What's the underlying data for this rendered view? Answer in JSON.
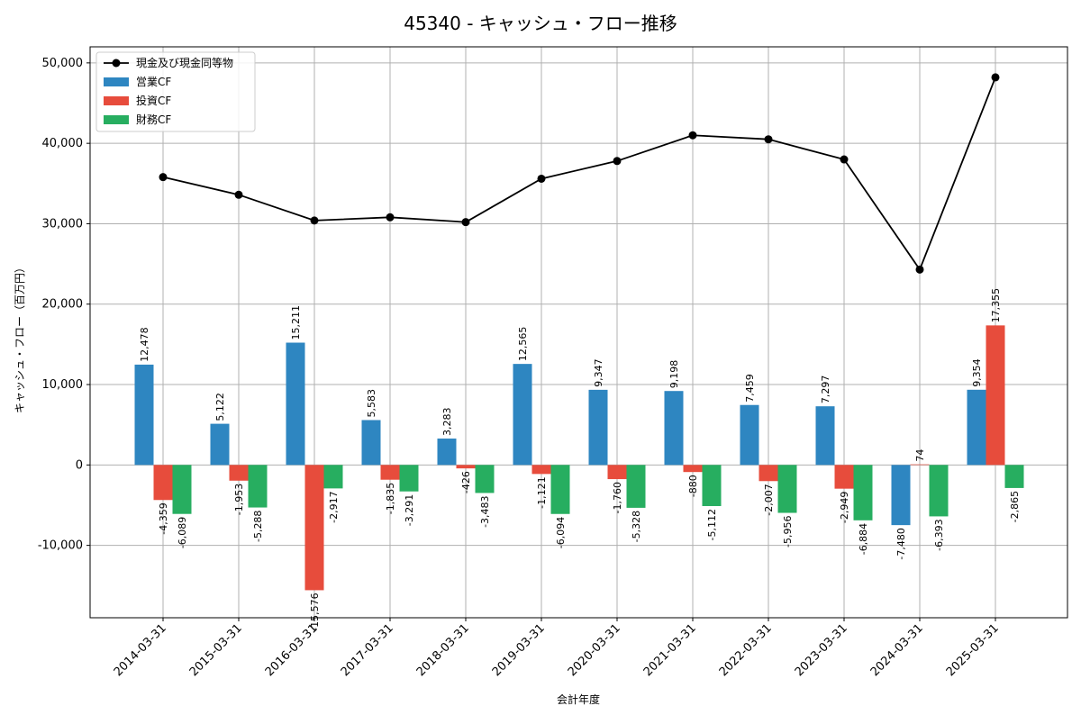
{
  "chart_data": {
    "type": "bar",
    "title": "45340 - キャッシュ・フロー推移",
    "xlabel": "会計年度",
    "ylabel": "キャッシュ・フロー（百万円）",
    "ylim": [
      -19000,
      52000
    ],
    "y_ticks": [
      -10000,
      0,
      10000,
      20000,
      30000,
      40000,
      50000
    ],
    "y_tick_labels": [
      "-10,000",
      "0",
      "10,000",
      "20,000",
      "30,000",
      "40,000",
      "50,000"
    ],
    "grid": true,
    "legend_position": "top-left",
    "categories": [
      "2014-03-31",
      "2015-03-31",
      "2016-03-31",
      "2017-03-31",
      "2018-03-31",
      "2019-03-31",
      "2020-03-31",
      "2021-03-31",
      "2022-03-31",
      "2023-03-31",
      "2024-03-31",
      "2025-03-31"
    ],
    "series": [
      {
        "name": "営業CF",
        "type": "bar",
        "color": "#2e86c1",
        "values": [
          12478,
          5122,
          15211,
          5583,
          3283,
          12565,
          9347,
          9198,
          7459,
          7297,
          -7480,
          9354
        ],
        "labels": [
          "12,478",
          "5,122",
          "15,211",
          "5,583",
          "3,283",
          "12,565",
          "9,347",
          "9,198",
          "7,459",
          "7,297",
          "-7,480",
          "9,354"
        ]
      },
      {
        "name": "投資CF",
        "type": "bar",
        "color": "#e74c3c",
        "values": [
          -4359,
          -1953,
          -15576,
          -1835,
          -426,
          -1121,
          -1760,
          -880,
          -2007,
          -2949,
          74,
          17355
        ],
        "labels": [
          "-4,359",
          "-1,953",
          "-15,576",
          "-1,835",
          "-426",
          "-1,121",
          "-1,760",
          "-880",
          "-2,007",
          "-2,949",
          "74",
          "17,355"
        ]
      },
      {
        "name": "財務CF",
        "type": "bar",
        "color": "#27ae60",
        "values": [
          -6089,
          -5288,
          -2917,
          -3291,
          -3483,
          -6094,
          -5328,
          -5112,
          -5956,
          -6884,
          -6393,
          -2865
        ],
        "labels": [
          "-6,089",
          "-5,288",
          "-2,917",
          "-3,291",
          "-3,483",
          "-6,094",
          "-5,328",
          "-5,112",
          "-5,956",
          "-6,884",
          "-6,393",
          "-2,865"
        ]
      },
      {
        "name": "現金及び現金同等物",
        "type": "line",
        "color": "#000000",
        "values": [
          35800,
          33600,
          30400,
          30800,
          30200,
          35600,
          37800,
          41000,
          40500,
          38000,
          24300,
          48200
        ]
      }
    ]
  }
}
